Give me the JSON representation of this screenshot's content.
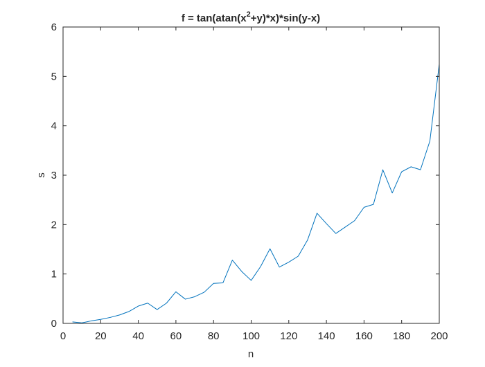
{
  "chart_data": {
    "type": "line",
    "title": "f = tan(atan(x",
    "title_superscript": "2",
    "title_suffix": "+y)*x)*sin(y-x)",
    "xlabel": "n",
    "ylabel": "s",
    "xlim": [
      0,
      200
    ],
    "ylim": [
      0,
      6
    ],
    "xticks": [
      0,
      20,
      40,
      60,
      80,
      100,
      120,
      140,
      160,
      180,
      200
    ],
    "yticks": [
      0,
      1,
      2,
      3,
      4,
      5,
      6
    ],
    "grid": false,
    "box": true,
    "series": [
      {
        "color": "#0072bd",
        "x": [
          5,
          10,
          15,
          20,
          25,
          30,
          35,
          40,
          45,
          50,
          55,
          60,
          65,
          70,
          75,
          80,
          85,
          90,
          95,
          100,
          105,
          110,
          115,
          120,
          125,
          130,
          135,
          140,
          145,
          150,
          155,
          160,
          165,
          170,
          175,
          180,
          185,
          190,
          195,
          200
        ],
        "y": [
          0.03,
          0.01,
          0.05,
          0.08,
          0.12,
          0.17,
          0.24,
          0.35,
          0.41,
          0.28,
          0.41,
          0.64,
          0.49,
          0.54,
          0.63,
          0.81,
          0.82,
          1.28,
          1.05,
          0.87,
          1.15,
          1.51,
          1.14,
          1.24,
          1.36,
          1.69,
          2.23,
          2.02,
          1.82,
          1.95,
          2.08,
          2.35,
          2.41,
          3.11,
          2.64,
          3.07,
          3.17,
          3.11,
          3.69,
          5.25
        ]
      },
      {
        "color": "#77ac30",
        "x": [
          5,
          200
        ],
        "y": [
          0,
          0
        ]
      }
    ]
  }
}
